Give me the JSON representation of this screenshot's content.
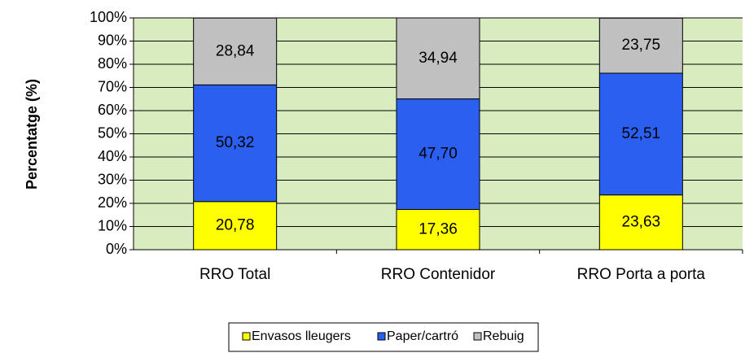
{
  "chart_data": {
    "type": "stacked_bar",
    "y_label": "Percentatge (%)",
    "categories": [
      "RRO Total",
      "RRO Contenidor",
      "RRO Porta a porta"
    ],
    "series": [
      {
        "name": "Envasos lleugers",
        "color": "#ffff00",
        "values": [
          20.78,
          17.36,
          23.63
        ],
        "value_labels": [
          "20,78",
          "17,36",
          "23,63"
        ]
      },
      {
        "name": "Paper/cartró",
        "color": "#2b5ff0",
        "values": [
          50.32,
          47.7,
          52.51
        ],
        "value_labels": [
          "50,32",
          "47,70",
          "52,51"
        ]
      },
      {
        "name": "Rebuig",
        "color": "#c0c0c0",
        "values": [
          28.84,
          34.94,
          23.75
        ],
        "value_labels": [
          "28,84",
          "34,94",
          "23,75"
        ]
      }
    ],
    "ylim": [
      0,
      100
    ],
    "yticks": [
      {
        "value": 0,
        "label": "0%"
      },
      {
        "value": 10,
        "label": "10%"
      },
      {
        "value": 20,
        "label": "20%"
      },
      {
        "value": 30,
        "label": "30%"
      },
      {
        "value": 40,
        "label": "40%"
      },
      {
        "value": 50,
        "label": "50%"
      },
      {
        "value": 60,
        "label": "60%"
      },
      {
        "value": 70,
        "label": "70%"
      },
      {
        "value": 80,
        "label": "80%"
      },
      {
        "value": 90,
        "label": "90%"
      },
      {
        "value": 100,
        "label": "100%"
      }
    ],
    "grid": true,
    "legend": "bottom",
    "plot_background": "#d8ecc0"
  }
}
